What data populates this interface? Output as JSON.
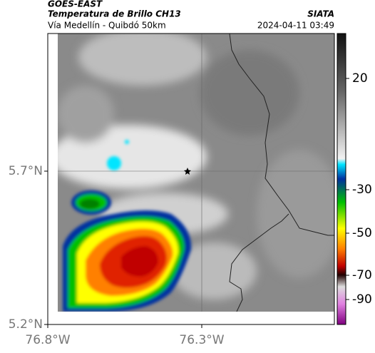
{
  "header": {
    "title": "GOES-EAST",
    "subtitle": "Temperatura de Brillo CH13",
    "source": "SIATA",
    "route": "Vía Medellín - Quibdó 50km",
    "datetime": "2024-04-11 03:49"
  },
  "map": {
    "xticks": [
      "76.8°W",
      "76.3°W"
    ],
    "yticks": [
      "5.7°N",
      "5.2°N"
    ]
  },
  "colorbar": {
    "ticks": [
      20,
      -30,
      -50,
      -70,
      -90
    ]
  }
}
